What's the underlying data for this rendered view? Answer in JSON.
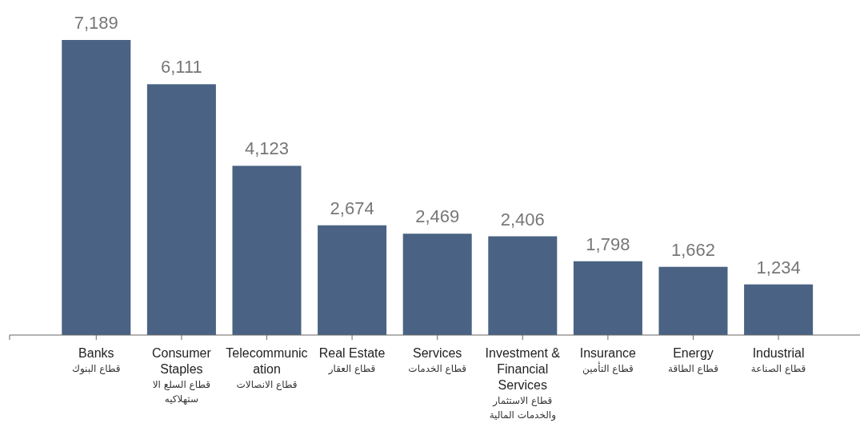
{
  "chart_data": {
    "type": "bar",
    "categories": [
      "Banks\nقطاع البنوك",
      "Consumer Staples\nقطاع السلع الا ستهلاكيه",
      "Telecommunication\nقطاع الانصالات",
      "Real Estate\nقطاع العقار",
      "Services\nقطاع الخدمات",
      "Investment & Financial Services\nقطاع الاستثمار والخدمات المالية",
      "Insurance\nقطاع التأمين",
      "Energy\nقطاع الطاقة",
      "Industrial\nقطاع الصناعة"
    ],
    "values": [
      7189,
      6111,
      4123,
      2674,
      2469,
      2406,
      1798,
      1662,
      1234
    ],
    "value_labels": [
      "7,189",
      "6,111",
      "4,123",
      "2,674",
      "2,469",
      "2,406",
      "1,798",
      "1,662",
      "1,234"
    ],
    "color": "#4a6283"
  }
}
